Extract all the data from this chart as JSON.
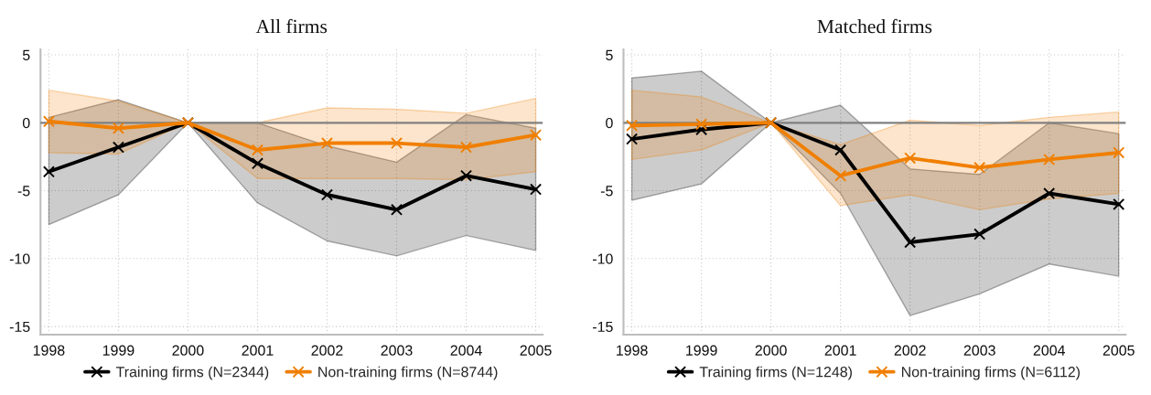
{
  "chart_data": [
    {
      "type": "line",
      "title": "All firms",
      "x": [
        1998,
        1999,
        2000,
        2001,
        2002,
        2003,
        2004,
        2005
      ],
      "xlim": [
        1997.88,
        2005.1
      ],
      "ylim": [
        -15.6,
        5.4
      ],
      "xticks": [
        1998,
        1999,
        2000,
        2001,
        2002,
        2003,
        2004,
        2005
      ],
      "yticks": [
        -15,
        -10,
        -5,
        0,
        5
      ],
      "grid": true,
      "legend": "bottom",
      "marker": "cross",
      "line_style": "solid",
      "ref_lines": [
        {
          "axis": "y",
          "value": 0,
          "color": "#808080"
        }
      ],
      "series": [
        {
          "name": "Training firms (N=2344)",
          "color": "#000000",
          "values": [
            -3.6,
            -1.8,
            0,
            -3.0,
            -5.3,
            -6.4,
            -3.9,
            -4.9
          ],
          "lower": [
            -7.5,
            -5.3,
            0,
            -5.9,
            -8.7,
            -9.8,
            -8.3,
            -9.4
          ],
          "upper": [
            0.4,
            1.7,
            0,
            0.0,
            -1.7,
            -2.9,
            0.6,
            -0.4
          ]
        },
        {
          "name": "Non-training firms (N=8744)",
          "color": "#f07f00",
          "values": [
            0.1,
            -0.4,
            0,
            -2.0,
            -1.5,
            -1.5,
            -1.8,
            -0.9
          ],
          "lower": [
            -2.2,
            -2.3,
            0,
            -4.1,
            -4.1,
            -4.1,
            -4.2,
            -3.6
          ],
          "upper": [
            2.4,
            1.6,
            0,
            0.0,
            1.1,
            1.0,
            0.7,
            1.8
          ]
        }
      ]
    },
    {
      "type": "line",
      "title": "Matched firms",
      "x": [
        1998,
        1999,
        2000,
        2001,
        2002,
        2003,
        2004,
        2005
      ],
      "xlim": [
        1997.88,
        2005.1
      ],
      "ylim": [
        -15.6,
        5.4
      ],
      "xticks": [
        1998,
        1999,
        2000,
        2001,
        2002,
        2003,
        2004,
        2005
      ],
      "yticks": [
        -15,
        -10,
        -5,
        0,
        5
      ],
      "grid": true,
      "legend": "bottom",
      "marker": "cross",
      "line_style": "solid",
      "ref_lines": [
        {
          "axis": "y",
          "value": 0,
          "color": "#808080"
        }
      ],
      "series": [
        {
          "name": "Training firms (N=1248)",
          "color": "#000000",
          "values": [
            -1.2,
            -0.5,
            0,
            -2.0,
            -8.8,
            -8.2,
            -5.2,
            -6.0
          ],
          "lower": [
            -5.7,
            -4.5,
            0,
            -5.2,
            -14.2,
            -12.6,
            -10.4,
            -11.3
          ],
          "upper": [
            3.3,
            3.8,
            0,
            1.3,
            -3.4,
            -3.8,
            0.0,
            -0.8
          ]
        },
        {
          "name": "Non-training firms (N=6112)",
          "color": "#f07f00",
          "values": [
            -0.2,
            -0.1,
            0,
            -3.9,
            -2.6,
            -3.3,
            -2.7,
            -2.2
          ],
          "lower": [
            -2.7,
            -2.0,
            0,
            -6.1,
            -5.3,
            -6.4,
            -5.6,
            -5.2
          ],
          "upper": [
            2.4,
            1.9,
            0,
            -1.6,
            0.2,
            -0.2,
            0.4,
            0.8
          ]
        }
      ]
    }
  ]
}
